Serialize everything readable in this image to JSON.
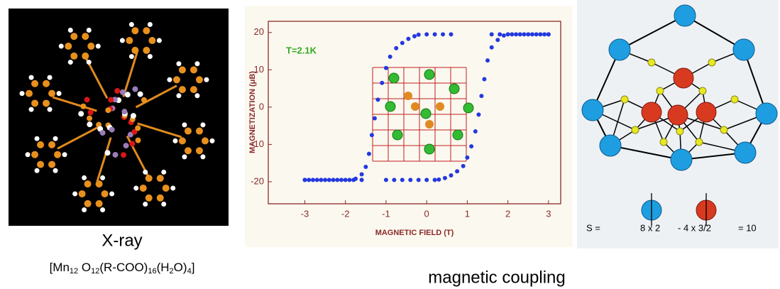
{
  "left_panel": {
    "caption": "X-ray",
    "formula": [
      "[Mn",
      "12",
      " O",
      "12",
      "(R-COO)",
      "16",
      "(H",
      "2",
      "O)",
      "4",
      "]"
    ]
  },
  "chart_data": {
    "type": "scatter",
    "annotation": "T=2.1K",
    "x_label": "MAGNETIC FIELD (T)",
    "y_label": "MAGNETIZATION (μB)",
    "xlim": [
      -3.9,
      3.3
    ],
    "ylim": [
      -25.9,
      23
    ],
    "xticks": [
      -3,
      -2,
      -1,
      0,
      1,
      2,
      3
    ],
    "yticks": [
      -20,
      -10,
      0,
      10,
      20
    ],
    "series": [
      {
        "color": "#2438e0",
        "x": [
          3,
          2.8,
          2.6,
          2.4,
          2.2,
          2.0,
          1.8,
          1.6,
          0.6,
          0.4,
          0.2,
          0.0,
          -0.2,
          -0.3,
          -0.45,
          -0.6,
          -0.75,
          -0.9,
          -1.0,
          -1.1,
          -1.2,
          -1.28,
          -1.35,
          -1.42,
          -1.5,
          -1.6,
          -1.75,
          -1.9,
          -2.1,
          -2.3,
          -2.5,
          -2.7,
          -2.9,
          -3
        ],
        "values": [
          19.5,
          19.5,
          19.5,
          19.5,
          19.5,
          19.5,
          19.5,
          19.5,
          19.5,
          19.5,
          19.5,
          19.5,
          19.4,
          19.0,
          18.3,
          17.2,
          15.8,
          13.5,
          10.5,
          6.5,
          2.0,
          -3.0,
          -7.5,
          -12.5,
          -16.0,
          -18.0,
          -19.2,
          -19.5,
          -19.5,
          -19.5,
          -19.5,
          -19.5,
          -19.5,
          -19.5
        ]
      },
      {
        "color": "#2438e0",
        "x": [
          -3,
          -2.8,
          -2.6,
          -2.4,
          -2.2,
          -2.0,
          -1.8,
          -1.6,
          -1.0,
          -0.8,
          -0.6,
          -0.4,
          -0.2,
          0.0,
          0.2,
          0.3,
          0.45,
          0.6,
          0.75,
          0.9,
          1.0,
          1.1,
          1.2,
          1.28,
          1.35,
          1.42,
          1.5,
          1.6,
          1.75,
          1.9,
          2.1,
          2.3,
          2.5,
          2.7,
          2.9,
          3
        ],
        "values": [
          -19.5,
          -19.5,
          -19.5,
          -19.5,
          -19.5,
          -19.5,
          -19.5,
          -19.5,
          -19.5,
          -19.5,
          -19.5,
          -19.5,
          -19.5,
          -19.5,
          -19.5,
          -19.4,
          -19.0,
          -18.3,
          -17.2,
          -15.8,
          -13.5,
          -10.5,
          -6.5,
          -2.0,
          3.0,
          7.5,
          12.5,
          16.0,
          18.0,
          19.2,
          19.5,
          19.5,
          19.5,
          19.5,
          19.5,
          19.5
        ]
      }
    ]
  },
  "caption": "magnetic coupling",
  "right_panel": {
    "equation": [
      "S =",
      "8 x 2",
      "- 4 x 3/2",
      "= 10"
    ]
  }
}
